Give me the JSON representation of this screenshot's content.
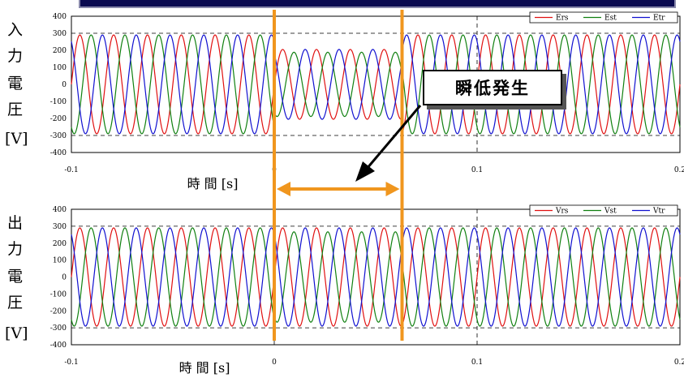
{
  "colors": {
    "phase1": "#e01010",
    "phase2": "#108010",
    "phase3": "#1010d0",
    "marker": "#f0961e",
    "banner": "#0a0a50"
  },
  "callout": {
    "label": "瞬低発生"
  },
  "chart_data": [
    {
      "type": "line",
      "ylabel_chars": [
        "入",
        "力",
        "電",
        "圧"
      ],
      "yunit": "[V]",
      "xlabel": "時 間 [s]",
      "xlim": [
        -0.1,
        0.2
      ],
      "ylim": [
        -400,
        400
      ],
      "xticks": [
        "-0.1",
        "0",
        "0.1",
        "0.2"
      ],
      "yticks": [
        "400",
        "300",
        "200",
        "100",
        "0",
        "-100",
        "-200",
        "-300",
        "-400"
      ],
      "grid": "dashed",
      "legend_position": "top-right",
      "frequency_hz": 60,
      "nominal_amplitude": 290,
      "sag": {
        "start": 0.0,
        "end": 0.063
      },
      "sag_amplitude": 205,
      "series": [
        {
          "name": "Ers",
          "phase_deg": 0
        },
        {
          "name": "Est",
          "phase_deg": -120
        },
        {
          "name": "Etr",
          "phase_deg": 120
        }
      ]
    },
    {
      "type": "line",
      "ylabel_chars": [
        "出",
        "力",
        "電",
        "圧"
      ],
      "yunit": "[V]",
      "xlabel": "時 間 [s]",
      "xlim": [
        -0.1,
        0.2
      ],
      "ylim": [
        -400,
        400
      ],
      "xticks": [
        "-0.1",
        "0",
        "0.1",
        "0.2"
      ],
      "yticks": [
        "400",
        "300",
        "200",
        "100",
        "0",
        "-100",
        "-200",
        "-300",
        "-400"
      ],
      "grid": "dashed",
      "legend_position": "top-right",
      "frequency_hz": 60,
      "nominal_amplitude": 290,
      "sag": {
        "start": 0.0,
        "end": 0.063
      },
      "sag_amplitude": 290,
      "series": [
        {
          "name": "Vrs",
          "phase_deg": 0
        },
        {
          "name": "Vst",
          "phase_deg": -120
        },
        {
          "name": "Vtr",
          "phase_deg": 120
        }
      ]
    }
  ]
}
